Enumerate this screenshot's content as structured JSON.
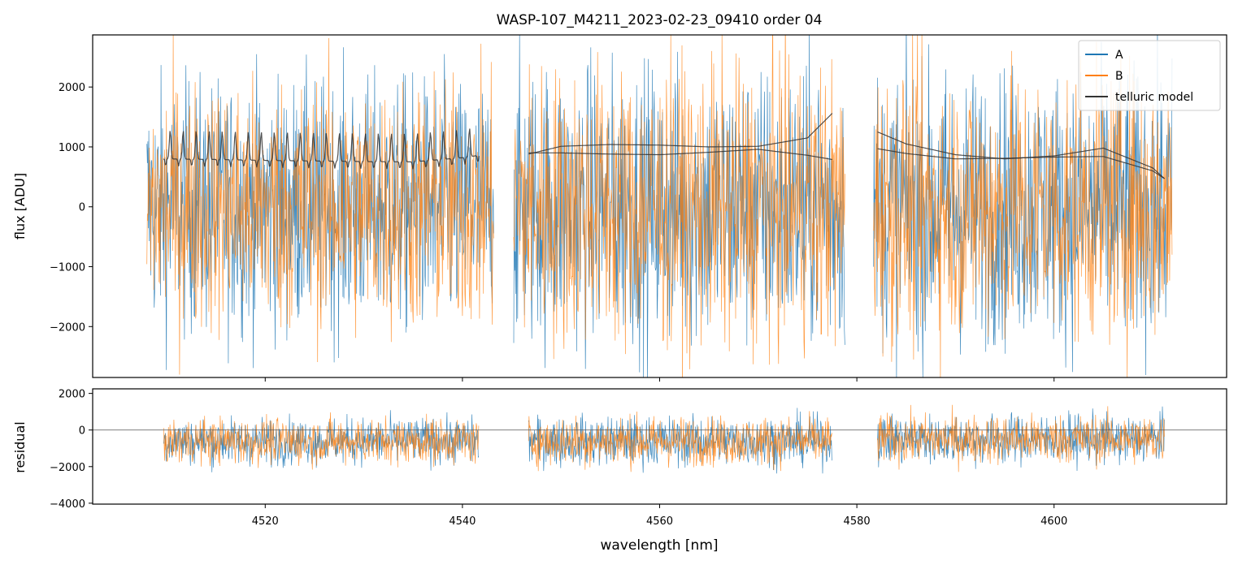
{
  "chart_data": {
    "title": "WASP-107_M4211_2023-02-23_09410  order 04",
    "xlabel": "wavelength [nm]",
    "xlim": [
      4502.5,
      4617.5
    ],
    "xticks": [
      4520,
      4540,
      4560,
      4580,
      4600
    ],
    "grid": false,
    "legend_position": "top-right",
    "panels": [
      {
        "name": "flux",
        "type": "line",
        "ylabel": "flux [ADU]",
        "ylim": [
          -2850,
          2870
        ],
        "yticks": [
          -2000,
          -1000,
          0,
          1000,
          2000
        ],
        "ytick_labels": [
          "−2000",
          "−1000",
          "0",
          "1000",
          "2000"
        ],
        "noise_segments": [
          {
            "x_range": [
              4508.0,
              4543.2
            ],
            "center": 0,
            "spread": 2500
          },
          {
            "x_range": [
              4545.2,
              4578.8
            ],
            "center": 0,
            "spread": 2800
          },
          {
            "x_range": [
              4581.7,
              4612.0
            ],
            "center": 0,
            "spread": 2700
          }
        ],
        "series": [
          {
            "name": "A",
            "color": "#1f77b4",
            "style": "noisy spectrum"
          },
          {
            "name": "B",
            "color": "#ff7f0e",
            "style": "noisy spectrum"
          },
          {
            "name": "telluric model",
            "color": "#333333",
            "curves": [
              {
                "x": [
                  4509.7,
                  4515,
                  4520,
                  4525,
                  4530,
                  4535,
                  4540,
                  4541.7
                ],
                "y": [
                  800,
                  790,
                  775,
                  765,
                  755,
                  750,
                  820,
                  860
                ],
                "note": "absorption lines between 4509.7 and 4541.7"
              },
              {
                "x": [
                  4546.7,
                  4550,
                  4555,
                  4560,
                  4565,
                  4570,
                  4575,
                  4577.5
                ],
                "y": [
                  880,
                  1010,
                  1040,
                  1030,
                  1000,
                  1010,
                  1150,
                  1560
                ]
              },
              {
                "x": [
                  4546.7,
                  4550,
                  4555,
                  4560,
                  4565,
                  4570,
                  4575,
                  4577.5
                ],
                "y": [
                  900,
                  900,
                  880,
                  870,
                  910,
                  960,
                  860,
                  790
                ]
              },
              {
                "x": [
                  4582.1,
                  4585,
                  4590,
                  4595,
                  4600,
                  4605,
                  4610,
                  4611.2
                ],
                "y": [
                  1250,
                  1050,
                  870,
                  800,
                  850,
                  980,
                  650,
                  470
                ]
              },
              {
                "x": [
                  4582.1,
                  4585,
                  4590,
                  4595,
                  4600,
                  4605,
                  4610,
                  4611.2
                ],
                "y": [
                  970,
                  890,
                  800,
                  810,
                  830,
                  840,
                  600,
                  470
                ]
              }
            ]
          }
        ],
        "legend": [
          "A",
          "B",
          "telluric model"
        ]
      },
      {
        "name": "residual",
        "type": "line",
        "ylabel": "residual",
        "ylim": [
          -4050,
          2250
        ],
        "yticks": [
          -4000,
          -2000,
          0,
          2000
        ],
        "ytick_labels": [
          "−4000",
          "−2000",
          "0",
          "2000"
        ],
        "zero_line": true,
        "noise_segments": [
          {
            "x_range": [
              4509.7,
              4541.7
            ],
            "center": -600,
            "spread": 1500
          },
          {
            "x_range": [
              4546.7,
              4577.5
            ],
            "center": -600,
            "spread": 1600
          },
          {
            "x_range": [
              4582.1,
              4611.2
            ],
            "center": -500,
            "spread": 1600
          }
        ],
        "series": [
          {
            "name": "A",
            "color": "#1f77b4"
          },
          {
            "name": "B",
            "color": "#ff7f0e"
          }
        ]
      }
    ]
  }
}
